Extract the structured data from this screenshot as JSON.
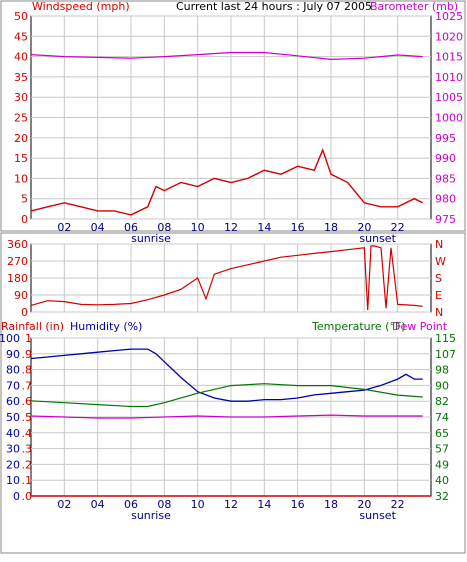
{
  "header": {
    "left_label": "Windspeed (mph)",
    "center_title": "Current last 24 hours : July 07 2005",
    "right_label": "Barometer (mb)"
  },
  "bottom_header": {
    "rainfall_label": "Rainfall (in)",
    "humidity_label": "Humidity (%)",
    "temperature_label": "Temperature (°F)",
    "dewpoint_label": "Dew Point"
  },
  "hour_ticks": [
    "02",
    "04",
    "06",
    "08",
    "10",
    "12",
    "14",
    "16",
    "18",
    "20",
    "22"
  ],
  "markers": {
    "sunrise": "sunrise",
    "sunset": "sunset"
  },
  "colors": {
    "windspeed": "#d40000",
    "gust_blue": "#0000cc",
    "gust_green": "#007700",
    "barometer": "#cc00cc",
    "direction": "#d40000",
    "humidity": "#0000aa",
    "temperature": "#007700",
    "dewpoint": "#cc00cc",
    "rainfall": "#d40000",
    "grid": "#c8c8c8"
  },
  "chart_data": [
    {
      "type": "line",
      "title": "Current last 24 hours : July 07 2005",
      "x_unit": "hour",
      "xlim": [
        0,
        24
      ],
      "ylabel": "Windspeed (mph)",
      "ylim": [
        0,
        50
      ],
      "yticks": [
        "0",
        "5",
        "10",
        "15",
        "20",
        "25",
        "30",
        "35",
        "40",
        "45",
        "50"
      ],
      "y2label": "Barometer (mb)",
      "y2lim": [
        975,
        1025
      ],
      "y2ticks": [
        "975",
        "980",
        "985",
        "990",
        "995",
        "1000",
        "1005",
        "1010",
        "1015",
        "1020",
        "1025"
      ],
      "series": [
        {
          "name": "Windspeed (mph)",
          "axis": "left",
          "x": [
            0,
            1,
            2,
            3,
            4,
            5,
            6,
            7,
            7.5,
            8,
            9,
            10,
            11,
            12,
            13,
            14,
            15,
            16,
            17,
            17.5,
            18,
            19,
            20,
            21,
            22,
            23,
            23.5
          ],
          "y": [
            2,
            3,
            4,
            3,
            2,
            2,
            1,
            3,
            8,
            7,
            9,
            8,
            10,
            9,
            10,
            12,
            11,
            13,
            12,
            17,
            11,
            9,
            4,
            3,
            3,
            5,
            4
          ]
        },
        {
          "name": "Barometer (mb)",
          "axis": "right",
          "x": [
            0,
            2,
            4,
            6,
            8,
            10,
            12,
            14,
            16,
            18,
            20,
            22,
            23.5
          ],
          "y": [
            1015.5,
            1015,
            1014.8,
            1014.6,
            1015,
            1015.5,
            1016,
            1016,
            1015.2,
            1014.3,
            1014.6,
            1015.4,
            1015
          ]
        }
      ]
    },
    {
      "type": "line",
      "x_unit": "hour",
      "xlim": [
        0,
        24
      ],
      "ylim": [
        0,
        360
      ],
      "yticks": [
        "0",
        "90",
        "180",
        "270",
        "360"
      ],
      "y2ticks": [
        "N",
        "E",
        "S",
        "W",
        "N"
      ],
      "series": [
        {
          "name": "Wind direction",
          "x": [
            0,
            1,
            2,
            3,
            4,
            5,
            6,
            7,
            8,
            9,
            10,
            10.5,
            11,
            12,
            13,
            14,
            15,
            16,
            17,
            18,
            19,
            20,
            20.2,
            20.4,
            20.6,
            21,
            21.3,
            21.6,
            22,
            23,
            23.5
          ],
          "y": [
            35,
            60,
            55,
            40,
            38,
            40,
            45,
            65,
            90,
            120,
            180,
            70,
            200,
            230,
            250,
            270,
            290,
            300,
            310,
            320,
            330,
            340,
            10,
            350,
            350,
            340,
            20,
            340,
            40,
            35,
            30
          ]
        }
      ]
    },
    {
      "type": "line",
      "x_unit": "hour",
      "xlim": [
        0,
        24
      ],
      "ylim": [
        0,
        100
      ],
      "yticks": [
        "0",
        "10",
        "20",
        "30",
        "40",
        "50",
        "60",
        "70",
        "80",
        "90",
        "100"
      ],
      "y2lim": [
        32,
        115
      ],
      "y2ticks": [
        "32",
        "40",
        "49",
        "57",
        "65",
        "74",
        "82",
        "90",
        "98",
        "107",
        "115"
      ],
      "rainfall_ticks": [
        ".0",
        ".1",
        ".2",
        ".3",
        ".4",
        ".5",
        ".6",
        ".7",
        ".8",
        ".9",
        "1"
      ],
      "series": [
        {
          "name": "Humidity (%)",
          "axis": "left",
          "x": [
            0,
            1,
            2,
            3,
            4,
            5,
            6,
            7,
            7.5,
            8,
            9,
            10,
            11,
            12,
            13,
            14,
            15,
            16,
            17,
            18,
            19,
            20,
            21,
            22,
            22.5,
            23,
            23.5
          ],
          "y": [
            87,
            88,
            89,
            90,
            91,
            92,
            93,
            93,
            90,
            85,
            75,
            66,
            62,
            60,
            60,
            61,
            61,
            62,
            64,
            65,
            66,
            67,
            70,
            74,
            77,
            74,
            74
          ]
        },
        {
          "name": "Temperature (°F)",
          "axis": "right",
          "x": [
            0,
            2,
            4,
            6,
            7,
            8,
            10,
            12,
            14,
            16,
            18,
            20,
            22,
            23.5
          ],
          "y": [
            82,
            81,
            80,
            79,
            79,
            81,
            86,
            90,
            91,
            90,
            90,
            88,
            85,
            84
          ]
        },
        {
          "name": "Dew Point",
          "axis": "right",
          "x": [
            0,
            2,
            4,
            6,
            8,
            10,
            12,
            14,
            16,
            18,
            20,
            22,
            23.5
          ],
          "y": [
            74,
            73.5,
            73,
            73,
            73.5,
            74,
            73.5,
            73.5,
            74,
            74.5,
            74,
            74,
            74
          ]
        },
        {
          "name": "Rainfall (in)",
          "axis": "rainfall",
          "x": [
            0,
            24
          ],
          "y": [
            0,
            0
          ]
        }
      ]
    }
  ]
}
